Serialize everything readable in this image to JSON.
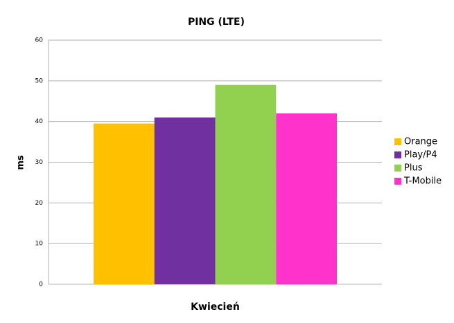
{
  "chart_data": {
    "type": "bar",
    "title": "PING (LTE)",
    "y_label": "ms",
    "categories": [
      "Kwiecień"
    ],
    "series": [
      {
        "name": "Orange",
        "color": "#ffc000",
        "values": [
          39.5
        ]
      },
      {
        "name": "Play/P4",
        "color": "#7030a0",
        "values": [
          41
        ]
      },
      {
        "name": "Plus",
        "color": "#92d050",
        "values": [
          49
        ]
      },
      {
        "name": "T-Mobile",
        "color": "#ff33cc",
        "values": [
          42
        ]
      }
    ],
    "ylim": [
      0,
      60
    ],
    "yticks": [
      0,
      10,
      20,
      30,
      40,
      50,
      60
    ],
    "grid": true,
    "legend": "right"
  }
}
